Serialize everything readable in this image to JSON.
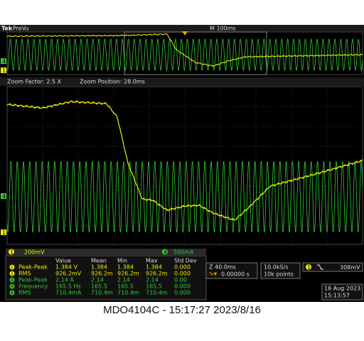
{
  "header": {
    "brand": "Tek",
    "mode": "PreVu",
    "timebase": "M 100ms"
  },
  "zoom": {
    "factor": "Zoom Factor: 2.5 X",
    "position": "Zoom Position: 28.0ms"
  },
  "channels": [
    {
      "number": "1",
      "scale": "200mV"
    },
    {
      "number": "4",
      "scale": "500mA"
    }
  ],
  "measurements": {
    "columns": [
      "Value",
      "Mean",
      "Min",
      "Max",
      "Std Dev"
    ],
    "rows": [
      {
        "channel": "1",
        "name": "Peak-Peak",
        "cells": [
          "1.384 V",
          "1.384",
          "1.384",
          "1.384",
          "0.000"
        ]
      },
      {
        "channel": "1",
        "name": "RMS",
        "cells": [
          "926.2mV",
          "926.2m",
          "926.2m",
          "926.2m",
          "0.000"
        ]
      },
      {
        "channel": "4",
        "name": "Peak-Peak",
        "cells": [
          "2.14 A",
          "2.14",
          "2.14",
          "2.14",
          "0.00"
        ]
      },
      {
        "channel": "4",
        "name": "Frequency",
        "cells": [
          "165.5 Hz",
          "165.5",
          "165.5",
          "165.5",
          "0.000"
        ]
      },
      {
        "channel": "4",
        "name": "RMS",
        "cells": [
          "710.4mA",
          "710.4m",
          "710.4m",
          "710.4m",
          "0.000"
        ]
      }
    ]
  },
  "horizontal": {
    "zoom": "Z 40.0ms",
    "delay": "0.00000 s",
    "rate": "10.0kS/s",
    "points": "10k points"
  },
  "trigger": {
    "channel": "1",
    "level": "308mV"
  },
  "clock": {
    "date": "16 Aug 2023",
    "time": "15:13:57"
  },
  "caption": "MDO4104C - 15:17:27   2023/8/16"
}
